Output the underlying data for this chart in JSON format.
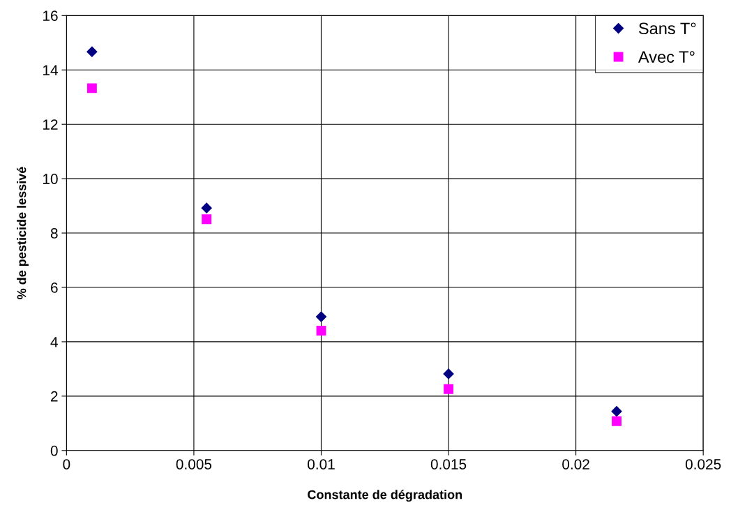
{
  "chart_data": {
    "type": "scatter",
    "xlabel": "Constante de dégradation",
    "ylabel": "% de pesticide lessivé",
    "x": [
      0.001,
      0.0055,
      0.01,
      0.015,
      0.0216
    ],
    "series": [
      {
        "name": "Sans T°",
        "color": "#000080",
        "marker": "diamond",
        "values": [
          14.67,
          8.92,
          4.92,
          2.82,
          1.44
        ]
      },
      {
        "name": "Avec T°",
        "color": "#ff00ff",
        "marker": "square",
        "values": [
          13.33,
          8.51,
          4.41,
          2.26,
          1.08
        ]
      }
    ],
    "xlim": [
      0,
      0.025
    ],
    "xticks": [
      0,
      0.005,
      0.01,
      0.015,
      0.02,
      0.025
    ],
    "ylim": [
      0,
      16
    ],
    "yticks": [
      0,
      2,
      4,
      6,
      8,
      10,
      12,
      14,
      16
    ],
    "grid": true,
    "legend": "top right"
  }
}
